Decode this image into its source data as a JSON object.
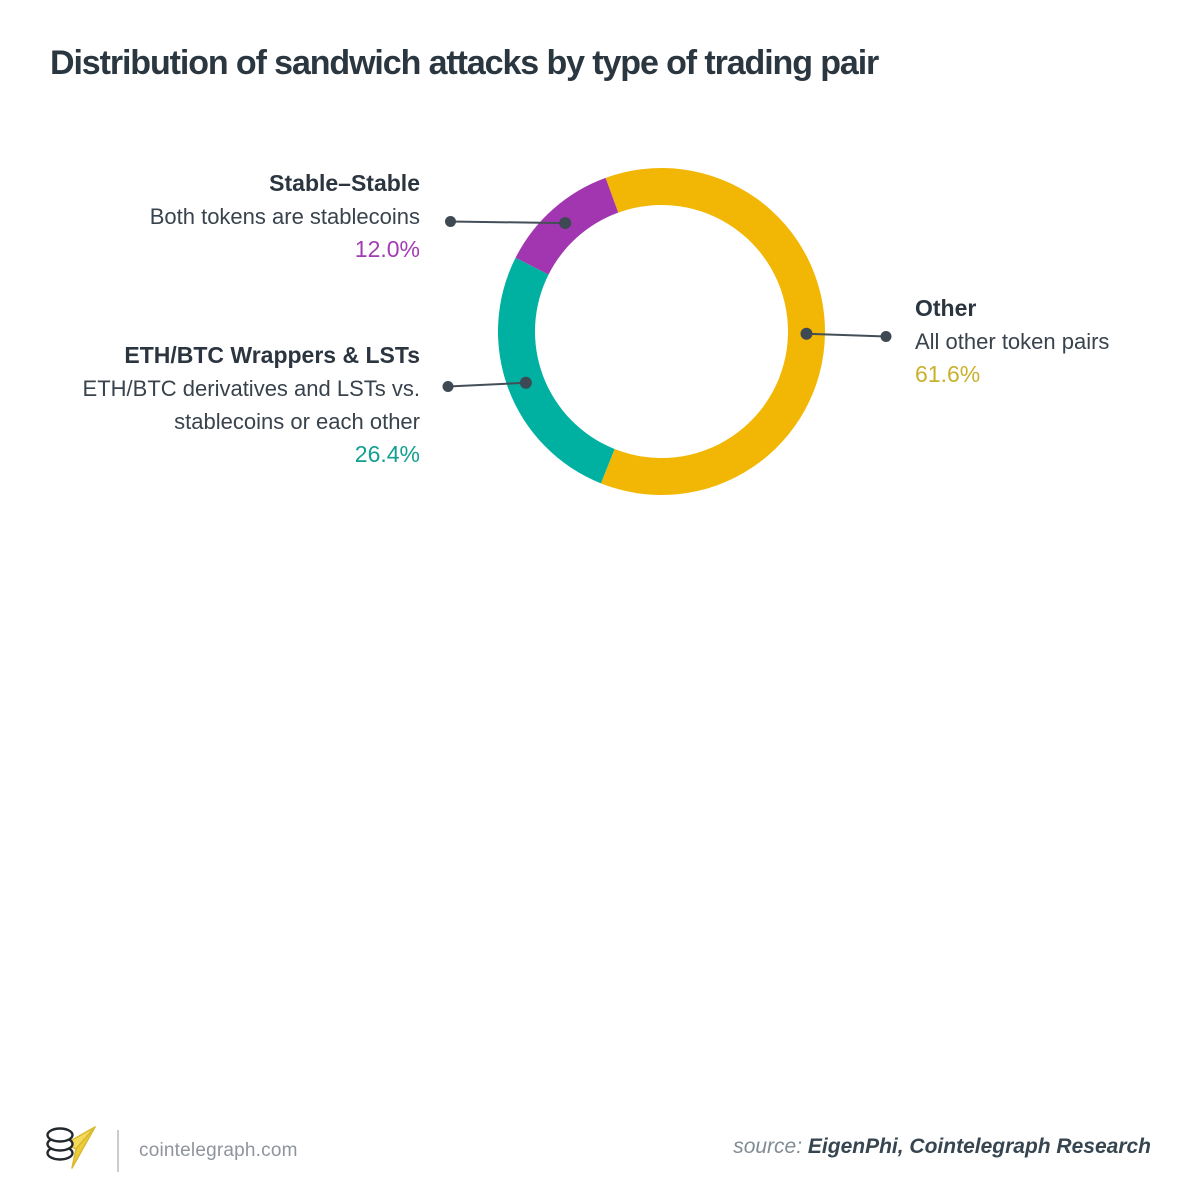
{
  "title": "Distribution of sandwich attacks by type of trading pair",
  "chart_data": {
    "type": "pie",
    "subtype": "donut",
    "title": "Distribution of sandwich attacks by type of trading pair",
    "units": "%",
    "total": 100,
    "start_angle_deg": -20,
    "direction": "clockwise",
    "legend_position": "callout-labels",
    "segments": [
      {
        "id": "other",
        "label": "Other",
        "description": "All other token pairs",
        "value": 61.6,
        "display": "61.6%",
        "color": "#F2B705"
      },
      {
        "id": "ethbtc-wrappers-lsts",
        "label": "ETH/BTC Wrappers & LSTs",
        "description": "ETH/BTC derivatives and LSTs vs. stablecoins or each other",
        "value": 26.4,
        "display": "26.4%",
        "color": "#00B0A1"
      },
      {
        "id": "stable-stable",
        "label": "Stable–Stable",
        "description": "Both tokens are stablecoins",
        "value": 12.0,
        "display": "12.0%",
        "color": "#A136B0"
      }
    ],
    "callout_colors": {
      "other_pct": "#c9b12c",
      "ethbtc_pct": "#13a092",
      "stable_pct": "#a23cb3"
    },
    "leader_line_color": "#434e58",
    "leader_dot_color": "#3e4953"
  },
  "footer": {
    "site": "cointelegraph.com",
    "source_prefix": "source:",
    "source_names": "EigenPhi, Cointelegraph Research"
  },
  "icons": {
    "logo": "cointelegraph-coin-stack-logo"
  }
}
